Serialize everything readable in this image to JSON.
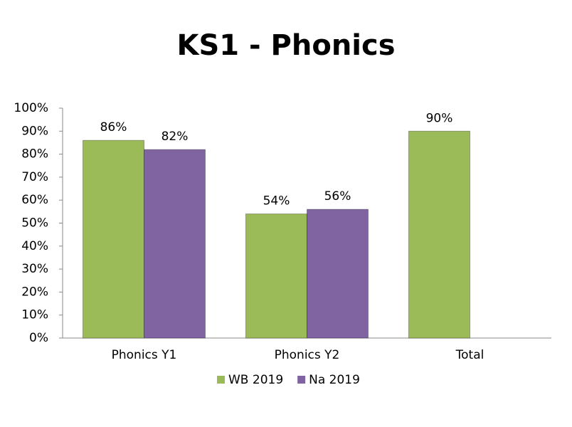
{
  "chart_data": {
    "type": "bar",
    "title": "KS1 - Phonics",
    "categories": [
      "Phonics Y1",
      "Phonics Y2",
      "Total"
    ],
    "series": [
      {
        "name": "WB 2019",
        "color": "#9bbb59",
        "values": [
          86,
          54,
          90
        ],
        "value_labels": [
          "86%",
          "54%",
          "90%"
        ]
      },
      {
        "name": "Na 2019",
        "color": "#8064a2",
        "values": [
          82,
          56,
          null
        ],
        "value_labels": [
          "82%",
          "56%",
          null
        ]
      }
    ],
    "ylim": [
      0,
      100
    ],
    "yticks": [
      {
        "value": 0,
        "label": "0%"
      },
      {
        "value": 10,
        "label": "10%"
      },
      {
        "value": 20,
        "label": "20%"
      },
      {
        "value": 30,
        "label": "30%"
      },
      {
        "value": 40,
        "label": "40%"
      },
      {
        "value": 50,
        "label": "50%"
      },
      {
        "value": 60,
        "label": "60%"
      },
      {
        "value": 70,
        "label": "70%"
      },
      {
        "value": 80,
        "label": "80%"
      },
      {
        "value": 90,
        "label": "90%"
      },
      {
        "value": 100,
        "label": "100%"
      }
    ],
    "legend": "bottom"
  }
}
